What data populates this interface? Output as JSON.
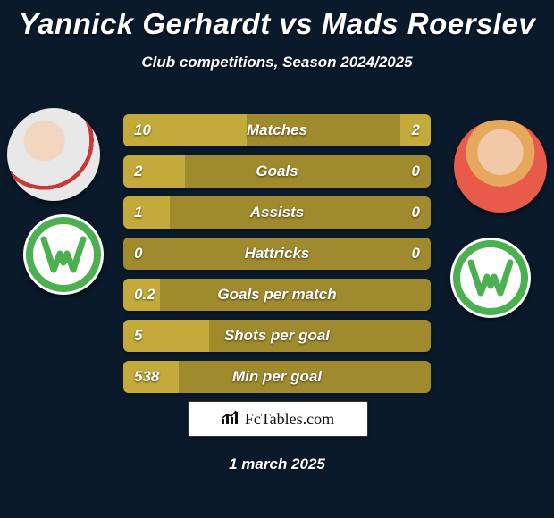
{
  "colors": {
    "page_bg": "#0b1a2b",
    "row_bg": "#a08a2e",
    "bar_fill": "#c3aa3a",
    "text": "#ffffff"
  },
  "title": "Yannick Gerhardt vs Mads Roerslev",
  "subtitle": "Club competitions, Season 2024/2025",
  "date": "1 march 2025",
  "brand": {
    "name": "FcTables.com"
  },
  "wolfsburg_logo_color": "#4caf50",
  "rows": [
    {
      "label": "Matches",
      "left": "10",
      "right": "2",
      "left_pct": 40,
      "right_pct": 10
    },
    {
      "label": "Goals",
      "left": "2",
      "right": "0",
      "left_pct": 20,
      "right_pct": 0
    },
    {
      "label": "Assists",
      "left": "1",
      "right": "0",
      "left_pct": 15,
      "right_pct": 0
    },
    {
      "label": "Hattricks",
      "left": "0",
      "right": "0",
      "left_pct": 0,
      "right_pct": 0
    },
    {
      "label": "Goals per match",
      "left": "0.2",
      "right": "",
      "left_pct": 12,
      "right_pct": 0
    },
    {
      "label": "Shots per goal",
      "left": "5",
      "right": "",
      "left_pct": 28,
      "right_pct": 0
    },
    {
      "label": "Min per goal",
      "left": "538",
      "right": "",
      "left_pct": 18,
      "right_pct": 0
    }
  ]
}
